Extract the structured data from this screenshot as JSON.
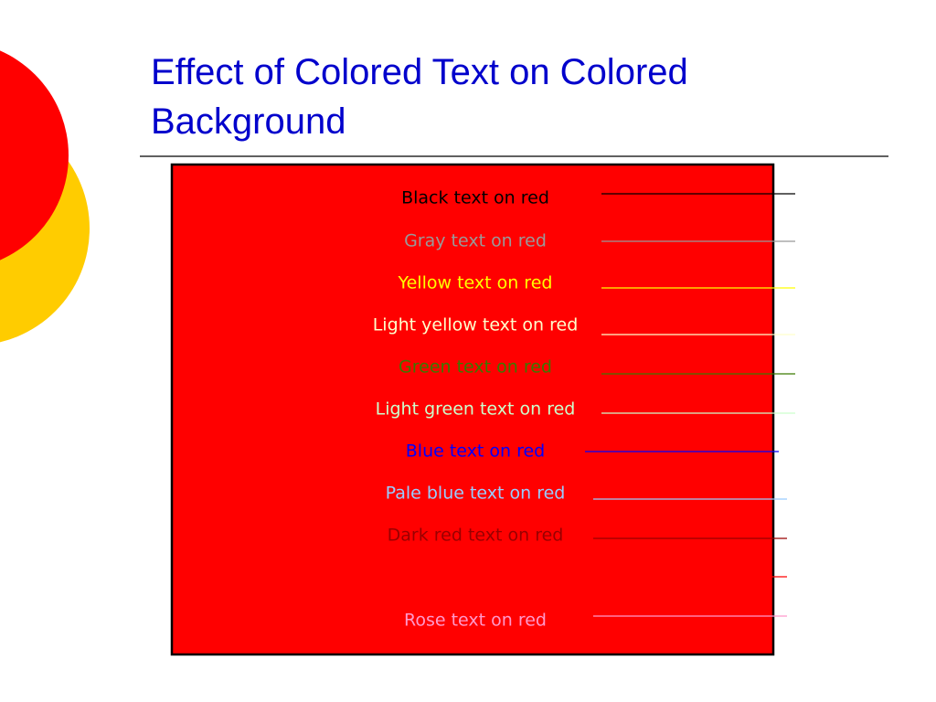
{
  "title": "Effect of Colored Text on Colored Background",
  "items": [
    {
      "text": "Black text on red",
      "color": "#000000"
    },
    {
      "text": "Gray text on red",
      "color": "#999999"
    },
    {
      "text": "Yellow text on red",
      "color": "#ffff00"
    },
    {
      "text": "Light yellow text on red",
      "color": "#ffffcc"
    },
    {
      "text": "Green text on red",
      "color": "#3a7a00"
    },
    {
      "text": "Light green text on red",
      "color": "#ccffcc"
    },
    {
      "text": "Blue text on red",
      "color": "#0000ff"
    },
    {
      "text": "Pale blue text on red",
      "color": "#99ccff"
    },
    {
      "text": "Dark red text on red",
      "color": "#990000"
    },
    {
      "text": "Rose text on red",
      "color": "#ff99cc"
    }
  ]
}
